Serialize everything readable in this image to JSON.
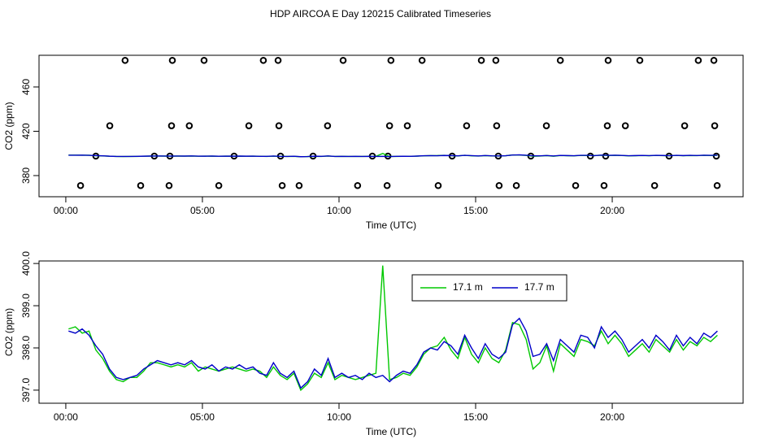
{
  "title": "HDP AIRCOA E  Day 120215  Calibrated Timeseries",
  "chart_data": [
    {
      "type": "line",
      "xlabel": "Time (UTC)",
      "ylabel": "CO2 (ppm)",
      "xlim": [
        -0.98,
        24.79
      ],
      "ylim": [
        360.9,
        488.6
      ],
      "xticks": [
        {
          "value": 0,
          "label": "00:00"
        },
        {
          "value": 5,
          "label": "05:00"
        },
        {
          "value": 10,
          "label": "10:00"
        },
        {
          "value": 15,
          "label": "15:00"
        },
        {
          "value": 20,
          "label": "20:00"
        }
      ],
      "yticks": [
        380,
        420,
        460
      ],
      "x": [
        0.1,
        0.35,
        0.6,
        0.85,
        1.1,
        1.35,
        1.6,
        1.85,
        2.1,
        2.35,
        2.6,
        2.85,
        3.1,
        3.35,
        3.6,
        3.85,
        4.1,
        4.35,
        4.6,
        4.85,
        5.1,
        5.35,
        5.6,
        5.85,
        6.1,
        6.35,
        6.6,
        6.85,
        7.1,
        7.35,
        7.6,
        7.85,
        8.1,
        8.35,
        8.6,
        8.85,
        9.1,
        9.35,
        9.6,
        9.85,
        10.1,
        10.35,
        10.6,
        10.85,
        11.1,
        11.35,
        11.6,
        11.85,
        12.1,
        12.35,
        12.6,
        12.85,
        13.1,
        13.35,
        13.6,
        13.85,
        14.1,
        14.35,
        14.6,
        14.85,
        15.1,
        15.35,
        15.6,
        15.85,
        16.1,
        16.35,
        16.6,
        16.85,
        17.1,
        17.35,
        17.6,
        17.85,
        18.1,
        18.35,
        18.6,
        18.85,
        19.1,
        19.35,
        19.6,
        19.85,
        20.1,
        20.35,
        20.6,
        20.85,
        21.1,
        21.35,
        21.6,
        21.85,
        22.1,
        22.35,
        22.6,
        22.85,
        23.1,
        23.35,
        23.6,
        23.85
      ],
      "series": [
        {
          "type": "scatter",
          "color": "#000000",
          "x": [
            2.17,
            3.9,
            5.06,
            7.23,
            7.77,
            10.15,
            11.9,
            13.04,
            15.21,
            15.74,
            18.1,
            19.85,
            21.01,
            23.15,
            23.72,
            1.61,
            3.87,
            4.52,
            6.7,
            7.8,
            9.58,
            11.85,
            12.5,
            14.67,
            15.77,
            17.59,
            19.82,
            20.48,
            22.65,
            23.75,
            1.1,
            3.24,
            3.81,
            6.16,
            7.86,
            9.05,
            11.22,
            11.79,
            14.14,
            15.83,
            17.02,
            19.2,
            19.76,
            22.08,
            23.81,
            0.54,
            2.74,
            3.78,
            5.6,
            7.92,
            8.54,
            10.68,
            11.76,
            13.63,
            15.86,
            16.49,
            18.66,
            19.7,
            21.55,
            23.84
          ],
          "values": [
            484,
            484,
            484,
            484,
            484,
            484,
            484,
            484,
            484,
            484,
            484,
            484,
            484,
            484,
            484,
            425,
            425,
            425,
            425,
            425,
            425,
            425,
            425,
            425,
            425,
            425,
            425,
            425,
            425,
            425,
            397.6,
            397.6,
            397.6,
            397.6,
            397.6,
            397.6,
            397.6,
            397.6,
            397.6,
            397.6,
            397.6,
            397.6,
            397.6,
            397.6,
            397.6,
            371,
            371,
            371,
            371,
            371,
            371,
            371,
            371,
            371,
            371,
            371,
            371,
            371,
            371,
            371
          ]
        },
        {
          "color": "#00c800",
          "values": [
            398.45,
            398.5,
            398.35,
            398.4,
            397.95,
            397.75,
            397.45,
            397.25,
            397.2,
            397.3,
            397.3,
            397.45,
            397.65,
            397.65,
            397.6,
            397.55,
            397.6,
            397.55,
            397.65,
            397.45,
            397.55,
            397.5,
            397.45,
            397.5,
            397.55,
            397.5,
            397.45,
            397.5,
            397.45,
            397.3,
            397.55,
            397.35,
            397.25,
            397.4,
            397.0,
            397.15,
            397.4,
            397.3,
            397.65,
            397.25,
            397.35,
            397.3,
            397.25,
            397.3,
            397.35,
            397.4,
            399.95,
            397.25,
            397.3,
            397.4,
            397.35,
            397.55,
            397.85,
            398.0,
            398.05,
            398.25,
            397.95,
            397.75,
            398.25,
            397.85,
            397.65,
            398.0,
            397.75,
            397.65,
            397.95,
            398.6,
            398.55,
            398.2,
            397.5,
            397.65,
            398.05,
            397.45,
            398.1,
            397.95,
            397.8,
            398.2,
            398.15,
            398.05,
            398.4,
            398.1,
            398.3,
            398.1,
            397.8,
            397.95,
            398.1,
            397.9,
            398.2,
            398.05,
            397.9,
            398.2,
            397.95,
            398.15,
            398.05,
            398.25,
            398.15,
            398.3
          ]
        },
        {
          "color": "#0000c8",
          "values": [
            398.4,
            398.35,
            398.45,
            398.3,
            398.05,
            397.85,
            397.5,
            397.3,
            397.25,
            397.3,
            397.35,
            397.5,
            397.6,
            397.7,
            397.65,
            397.6,
            397.65,
            397.6,
            397.7,
            397.55,
            397.5,
            397.6,
            397.45,
            397.55,
            397.5,
            397.6,
            397.5,
            397.55,
            397.4,
            397.35,
            397.65,
            397.4,
            397.3,
            397.45,
            397.05,
            397.2,
            397.5,
            397.35,
            397.75,
            397.3,
            397.4,
            397.3,
            397.35,
            397.25,
            397.4,
            397.3,
            397.35,
            397.2,
            397.35,
            397.45,
            397.4,
            397.6,
            397.9,
            398.0,
            397.95,
            398.15,
            398.05,
            397.85,
            398.3,
            398.0,
            397.75,
            398.1,
            397.85,
            397.75,
            397.9,
            398.55,
            398.7,
            398.4,
            397.8,
            397.85,
            398.1,
            397.7,
            398.2,
            398.05,
            397.9,
            398.3,
            398.25,
            398.0,
            398.5,
            398.25,
            398.4,
            398.2,
            397.9,
            398.05,
            398.2,
            398.0,
            398.3,
            398.15,
            397.95,
            398.3,
            398.05,
            398.25,
            398.1,
            398.35,
            398.25,
            398.4
          ]
        }
      ]
    },
    {
      "type": "line",
      "xlabel": "Time (UTC)",
      "ylabel": "CO2 (ppm)",
      "legend": "top",
      "xlim": [
        -0.98,
        24.79
      ],
      "ylim": [
        396.69,
        400.06
      ],
      "xticks": [
        {
          "value": 0,
          "label": "00:00"
        },
        {
          "value": 5,
          "label": "05:00"
        },
        {
          "value": 10,
          "label": "10:00"
        },
        {
          "value": 15,
          "label": "15:00"
        },
        {
          "value": 20,
          "label": "20:00"
        }
      ],
      "yticks": [
        {
          "value": 397,
          "label": "397.0"
        },
        {
          "value": 398,
          "label": "398.0"
        },
        {
          "value": 399,
          "label": "399.0"
        },
        {
          "value": 400,
          "label": "400.0"
        }
      ],
      "x": [
        0.1,
        0.35,
        0.6,
        0.85,
        1.1,
        1.35,
        1.6,
        1.85,
        2.1,
        2.35,
        2.6,
        2.85,
        3.1,
        3.35,
        3.6,
        3.85,
        4.1,
        4.35,
        4.6,
        4.85,
        5.1,
        5.35,
        5.6,
        5.85,
        6.1,
        6.35,
        6.6,
        6.85,
        7.1,
        7.35,
        7.6,
        7.85,
        8.1,
        8.35,
        8.6,
        8.85,
        9.1,
        9.35,
        9.6,
        9.85,
        10.1,
        10.35,
        10.6,
        10.85,
        11.1,
        11.35,
        11.6,
        11.85,
        12.1,
        12.35,
        12.6,
        12.85,
        13.1,
        13.35,
        13.6,
        13.85,
        14.1,
        14.35,
        14.6,
        14.85,
        15.1,
        15.35,
        15.6,
        15.85,
        16.1,
        16.35,
        16.6,
        16.85,
        17.1,
        17.35,
        17.6,
        17.85,
        18.1,
        18.35,
        18.6,
        18.85,
        19.1,
        19.35,
        19.6,
        19.85,
        20.1,
        20.35,
        20.6,
        20.85,
        21.1,
        21.35,
        21.6,
        21.85,
        22.1,
        22.35,
        22.6,
        22.85,
        23.1,
        23.35,
        23.6,
        23.85
      ],
      "series": [
        {
          "name": "17.1 m",
          "color": "#00c800",
          "values": [
            398.45,
            398.5,
            398.35,
            398.4,
            397.95,
            397.75,
            397.45,
            397.25,
            397.2,
            397.3,
            397.3,
            397.45,
            397.65,
            397.65,
            397.6,
            397.55,
            397.6,
            397.55,
            397.65,
            397.45,
            397.55,
            397.5,
            397.45,
            397.5,
            397.55,
            397.5,
            397.45,
            397.5,
            397.45,
            397.3,
            397.55,
            397.35,
            397.25,
            397.4,
            397.0,
            397.15,
            397.4,
            397.3,
            397.65,
            397.25,
            397.35,
            397.3,
            397.25,
            397.3,
            397.35,
            397.4,
            399.95,
            397.25,
            397.3,
            397.4,
            397.35,
            397.55,
            397.85,
            398.0,
            398.05,
            398.25,
            397.95,
            397.75,
            398.25,
            397.85,
            397.65,
            398.0,
            397.75,
            397.65,
            397.95,
            398.6,
            398.55,
            398.2,
            397.5,
            397.65,
            398.05,
            397.45,
            398.1,
            397.95,
            397.8,
            398.2,
            398.15,
            398.05,
            398.4,
            398.1,
            398.3,
            398.1,
            397.8,
            397.95,
            398.1,
            397.9,
            398.2,
            398.05,
            397.9,
            398.2,
            397.95,
            398.15,
            398.05,
            398.25,
            398.15,
            398.3
          ]
        },
        {
          "name": "17.7 m",
          "color": "#0000c8",
          "values": [
            398.4,
            398.35,
            398.45,
            398.3,
            398.05,
            397.85,
            397.5,
            397.3,
            397.25,
            397.3,
            397.35,
            397.5,
            397.6,
            397.7,
            397.65,
            397.6,
            397.65,
            397.6,
            397.7,
            397.55,
            397.5,
            397.6,
            397.45,
            397.55,
            397.5,
            397.6,
            397.5,
            397.55,
            397.4,
            397.35,
            397.65,
            397.4,
            397.3,
            397.45,
            397.05,
            397.2,
            397.5,
            397.35,
            397.75,
            397.3,
            397.4,
            397.3,
            397.35,
            397.25,
            397.4,
            397.3,
            397.35,
            397.2,
            397.35,
            397.45,
            397.4,
            397.6,
            397.9,
            398.0,
            397.95,
            398.15,
            398.05,
            397.85,
            398.3,
            398.0,
            397.75,
            398.1,
            397.85,
            397.75,
            397.9,
            398.55,
            398.7,
            398.4,
            397.8,
            397.85,
            398.1,
            397.7,
            398.2,
            398.05,
            397.9,
            398.3,
            398.25,
            398.0,
            398.5,
            398.25,
            398.4,
            398.2,
            397.9,
            398.05,
            398.2,
            398.0,
            398.3,
            398.15,
            397.95,
            398.3,
            398.05,
            398.25,
            398.1,
            398.35,
            398.25,
            398.4
          ]
        }
      ]
    }
  ]
}
